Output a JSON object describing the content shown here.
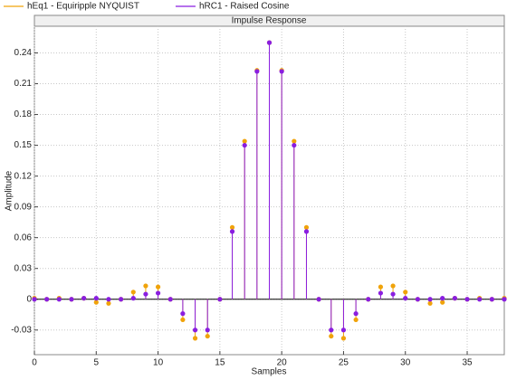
{
  "chart_data": {
    "type": "stem",
    "title": "Impulse Response",
    "x_label": "Samples",
    "y_label": "Amplitude",
    "x": [
      0,
      1,
      2,
      3,
      4,
      5,
      6,
      7,
      8,
      9,
      10,
      11,
      12,
      13,
      14,
      15,
      16,
      17,
      18,
      19,
      20,
      21,
      22,
      23,
      24,
      25,
      26,
      27,
      28,
      29,
      30,
      31,
      32,
      33,
      34,
      35,
      36,
      37,
      38
    ],
    "series": [
      {
        "name": "hEq1 - Equiripple NYQUIST",
        "color": "#f0a30a",
        "values": [
          0.001,
          0,
          0.001,
          0,
          0.001,
          -0.003,
          -0.004,
          0,
          0.007,
          0.013,
          0.012,
          0,
          -0.02,
          -0.038,
          -0.036,
          0,
          0.07,
          0.154,
          0.223,
          0.25,
          0.223,
          0.154,
          0.07,
          0,
          -0.036,
          -0.038,
          -0.02,
          0,
          0.012,
          0.013,
          0.007,
          0,
          -0.004,
          -0.003,
          0.001,
          0,
          0.001,
          0,
          0.001
        ]
      },
      {
        "name": "hRC1 - Raised Cosine",
        "color": "#8a1ee0",
        "values": [
          0,
          0,
          0,
          0,
          0.001,
          0.001,
          0,
          0,
          0.001,
          0.005,
          0.006,
          0,
          -0.014,
          -0.03,
          -0.03,
          0,
          0.066,
          0.15,
          0.222,
          0.25,
          0.222,
          0.15,
          0.066,
          0,
          -0.03,
          -0.03,
          -0.014,
          0,
          0.006,
          0.005,
          0.001,
          0,
          0,
          0.001,
          0.001,
          0,
          0,
          0,
          0
        ]
      }
    ],
    "xlim": [
      0,
      38
    ],
    "xticks": [
      0,
      5,
      10,
      15,
      20,
      25,
      30,
      35
    ],
    "ylim": [
      -0.054,
      0.266
    ],
    "yticks": [
      -0.03,
      0,
      0.03,
      0.06,
      0.09,
      0.12,
      0.15,
      0.18,
      0.21,
      0.24
    ],
    "grid": true
  }
}
